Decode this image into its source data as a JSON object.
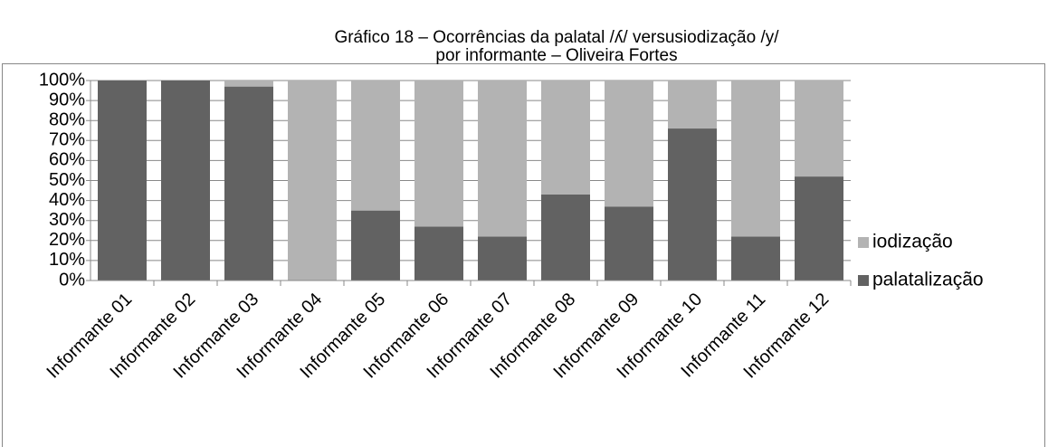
{
  "chart_data": {
    "type": "stacked_bar",
    "title": [
      "Gráfico 18 – Ocorrências da palatal /ʎ/ versusiodização /y/",
      "por informante – Oliveira Fortes"
    ],
    "categories": [
      "Informante 01",
      "Informante 02",
      "Informante 03",
      "Informante 04",
      "Informante 05",
      "Informante 06",
      "Informante 07",
      "Informante 08",
      "Informante 09",
      "Informante 10",
      "Informante 11",
      "Informante 12"
    ],
    "series": [
      {
        "name": "palatalização",
        "color": "#626262",
        "values": [
          100,
          100,
          97,
          0,
          35,
          27,
          22,
          43,
          37,
          76,
          22,
          52
        ]
      },
      {
        "name": "iodização",
        "color": "#b3b3b3",
        "values": [
          0,
          0,
          3,
          100,
          65,
          73,
          78,
          57,
          63,
          24,
          78,
          48
        ]
      }
    ],
    "ylim": [
      0,
      100
    ],
    "yticks": [
      {
        "value": 0,
        "label": "0%"
      },
      {
        "value": 10,
        "label": "10%"
      },
      {
        "value": 20,
        "label": "20%"
      },
      {
        "value": 30,
        "label": "30%"
      },
      {
        "value": 40,
        "label": "40%"
      },
      {
        "value": 50,
        "label": "50%"
      },
      {
        "value": 60,
        "label": "60%"
      },
      {
        "value": 70,
        "label": "70%"
      },
      {
        "value": 80,
        "label": "80%"
      },
      {
        "value": 90,
        "label": "90%"
      },
      {
        "value": 100,
        "label": "100%"
      }
    ],
    "grid": true,
    "legend": "right"
  }
}
